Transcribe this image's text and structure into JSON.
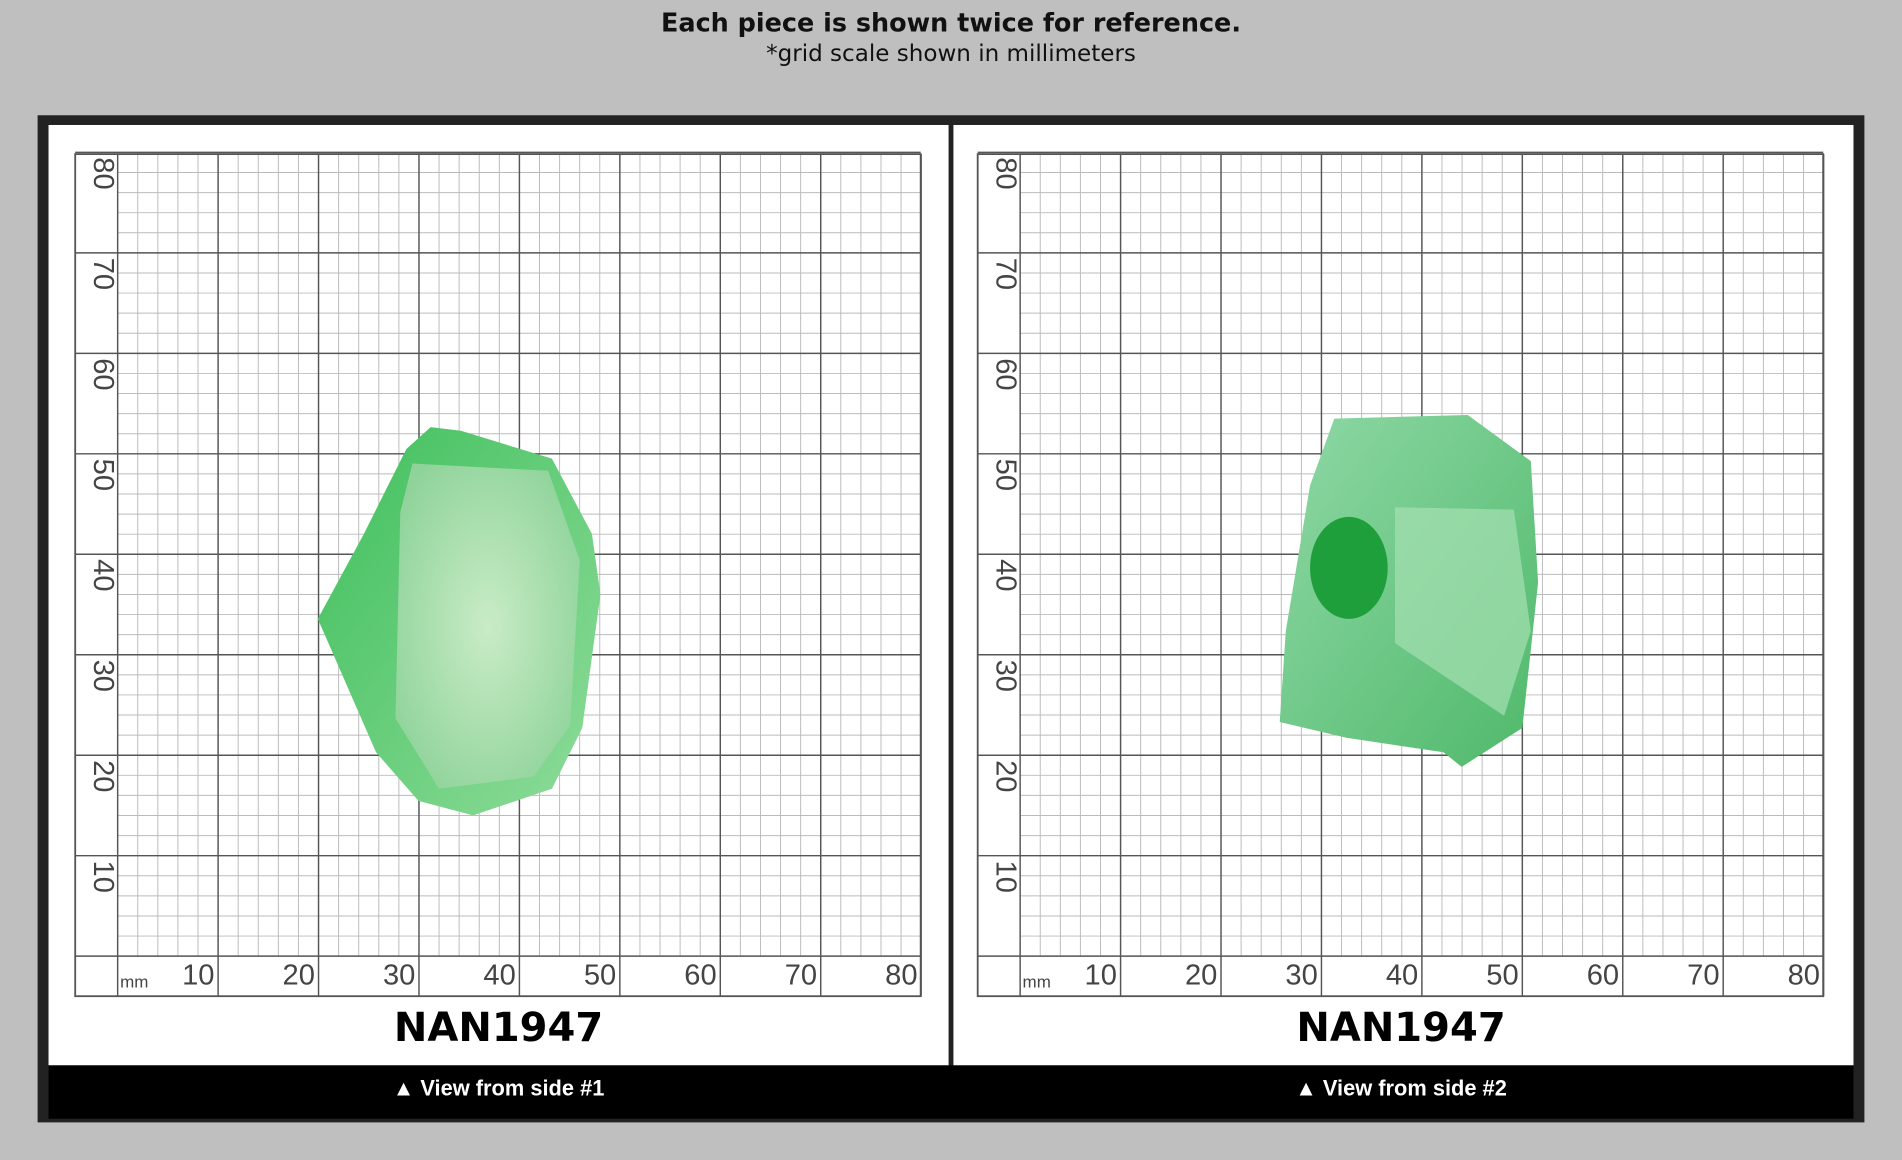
{
  "header": {
    "title": "Each piece is shown twice for reference.",
    "subtitle": "*grid scale shown in millimeters"
  },
  "panels": [
    {
      "unit": "mm",
      "xticks": [
        10,
        20,
        30,
        40,
        50,
        60,
        70,
        80
      ],
      "yticks": [
        10,
        20,
        30,
        40,
        50,
        60,
        70,
        80
      ],
      "label": "NAN1947",
      "caption": "▲ View from side #1"
    },
    {
      "unit": "mm",
      "xticks": [
        10,
        20,
        30,
        40,
        50,
        60,
        70,
        80
      ],
      "yticks": [
        10,
        20,
        30,
        40,
        50,
        60,
        70,
        80
      ],
      "label": "NAN1947",
      "caption": "▲ View from side #2"
    }
  ]
}
